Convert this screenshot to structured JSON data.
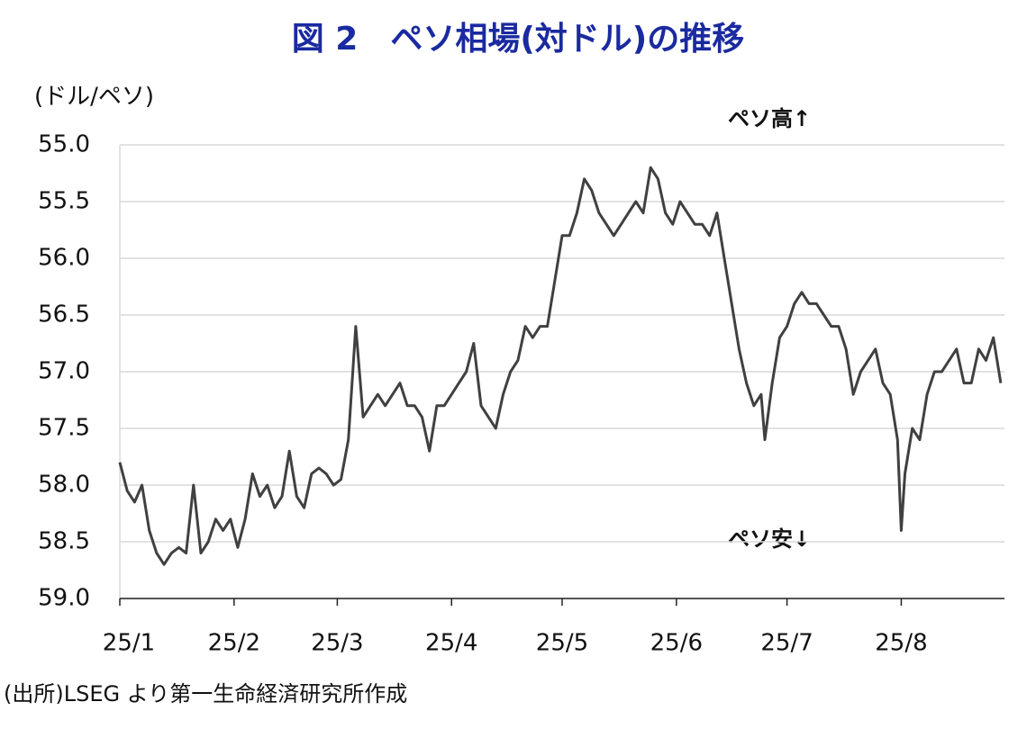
{
  "chart_data": {
    "type": "line",
    "title": "図 2　ペソ相場(対ドル)の推移",
    "y_axis_label": "(ドル/ペソ)",
    "annotations": [
      "ペソ高↑",
      "ペソ安↓"
    ],
    "source": "(出所)LSEG より第一生命経済研究所作成",
    "ylim": [
      55.0,
      59.0
    ],
    "y_inverted": true,
    "yticks": [
      {
        "value": 55,
        "label": "55.0"
      },
      {
        "value": 55.5,
        "label": "55.5"
      },
      {
        "value": 56,
        "label": "56.0"
      },
      {
        "value": 56.5,
        "label": "56.5"
      },
      {
        "value": 57,
        "label": "57.0"
      },
      {
        "value": 57.5,
        "label": "57.5"
      },
      {
        "value": 58,
        "label": "58.0"
      },
      {
        "value": 58.5,
        "label": "58.5"
      },
      {
        "value": 59,
        "label": "59.0"
      }
    ],
    "xlim": [
      0,
      240
    ],
    "xticks": [
      {
        "value": 0,
        "label": "25/1"
      },
      {
        "value": 31,
        "label": "25/2"
      },
      {
        "value": 59,
        "label": "25/3"
      },
      {
        "value": 90,
        "label": "25/4"
      },
      {
        "value": 120,
        "label": "25/5"
      },
      {
        "value": 151,
        "label": "25/6"
      },
      {
        "value": 181,
        "label": "25/7"
      },
      {
        "value": 212,
        "label": "25/8"
      }
    ],
    "grid": true,
    "x": [
      0,
      2,
      4,
      6,
      8,
      10,
      12,
      14,
      16,
      18,
      20,
      22,
      24,
      26,
      28,
      30,
      32,
      34,
      36,
      38,
      40,
      42,
      44,
      46,
      48,
      50,
      52,
      54,
      56,
      58,
      60,
      62,
      64,
      66,
      68,
      70,
      72,
      74,
      76,
      78,
      80,
      82,
      84,
      86,
      88,
      90,
      92,
      94,
      96,
      98,
      100,
      102,
      104,
      106,
      108,
      110,
      112,
      114,
      116,
      118,
      120,
      122,
      124,
      126,
      128,
      130,
      132,
      134,
      136,
      138,
      140,
      142,
      144,
      146,
      148,
      150,
      152,
      154,
      156,
      158,
      160,
      162,
      164,
      166,
      168,
      170,
      172,
      174,
      175,
      177,
      179,
      181,
      183,
      185,
      187,
      189,
      191,
      193,
      195,
      197,
      199,
      201,
      203,
      205,
      207,
      209,
      211,
      212,
      213,
      215,
      217,
      219,
      221,
      223,
      225,
      227,
      229,
      231,
      233,
      235,
      237,
      239
    ],
    "series": [
      {
        "color": "#404040",
        "values": [
          57.8,
          58.05,
          58.15,
          58.0,
          58.4,
          58.6,
          58.7,
          58.6,
          58.55,
          58.6,
          58.0,
          58.6,
          58.5,
          58.3,
          58.4,
          58.3,
          58.55,
          58.3,
          57.9,
          58.1,
          58.0,
          58.2,
          58.1,
          57.7,
          58.1,
          58.2,
          57.9,
          57.85,
          57.9,
          58.0,
          57.95,
          57.6,
          56.6,
          57.4,
          57.3,
          57.2,
          57.3,
          57.2,
          57.1,
          57.3,
          57.3,
          57.4,
          57.7,
          57.3,
          57.3,
          57.2,
          57.1,
          57.0,
          56.75,
          57.3,
          57.4,
          57.5,
          57.2,
          57.0,
          56.9,
          56.6,
          56.7,
          56.6,
          56.6,
          56.2,
          55.8,
          55.8,
          55.6,
          55.3,
          55.4,
          55.6,
          55.7,
          55.8,
          55.7,
          55.6,
          55.5,
          55.6,
          55.2,
          55.3,
          55.6,
          55.7,
          55.5,
          55.6,
          55.7,
          55.7,
          55.8,
          55.6,
          56.0,
          56.4,
          56.8,
          57.1,
          57.3,
          57.2,
          57.6,
          57.1,
          56.7,
          56.6,
          56.4,
          56.3,
          56.4,
          56.4,
          56.5,
          56.6,
          56.6,
          56.8,
          57.2,
          57.0,
          56.9,
          56.8,
          57.1,
          57.2,
          57.6,
          58.4,
          57.9,
          57.5,
          57.6,
          57.2,
          57.0,
          57.0,
          56.9,
          56.8,
          57.1,
          57.1,
          56.8,
          56.9,
          56.7,
          57.1
        ]
      }
    ]
  }
}
